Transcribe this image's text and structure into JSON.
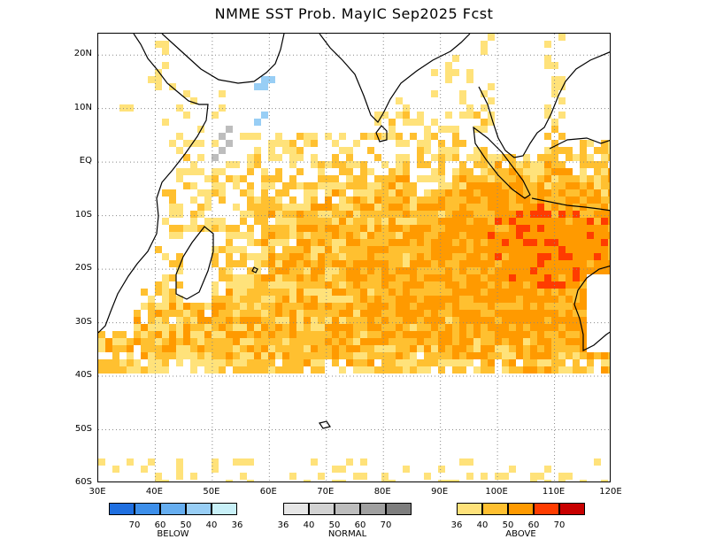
{
  "title": "NMME SST Prob. MayIC  Sep2025 Fcst",
  "lat_labels": [
    "20N",
    "10N",
    "EQ",
    "10S",
    "20S",
    "30S",
    "40S",
    "50S",
    "60S"
  ],
  "lon_labels": [
    "30E",
    "40E",
    "50E",
    "60E",
    "70E",
    "80E",
    "90E",
    "100E",
    "110E",
    "120E"
  ],
  "map_extent": {
    "lon": [
      30,
      120
    ],
    "lat": [
      -60,
      24
    ]
  },
  "legend": {
    "below": {
      "caption": "BELOW",
      "colors": [
        "#1f6fe0",
        "#3d8fea",
        "#66aef0",
        "#98cef5",
        "#c8f0f8"
      ],
      "ticks": [
        "70",
        "60",
        "50",
        "40",
        "36"
      ]
    },
    "normal": {
      "caption": "NORMAL",
      "colors": [
        "#e6e6e6",
        "#d2d2d2",
        "#bdbdbd",
        "#a0a0a0",
        "#7e7e7e"
      ],
      "ticks": [
        "36",
        "40",
        "50",
        "60",
        "70"
      ]
    },
    "above": {
      "caption": "ABOVE",
      "colors": [
        "#ffe27a",
        "#ffc030",
        "#ff9a00",
        "#ff3c00",
        "#c80000"
      ],
      "ticks": [
        "36",
        "40",
        "50",
        "60",
        "70"
      ]
    }
  }
}
